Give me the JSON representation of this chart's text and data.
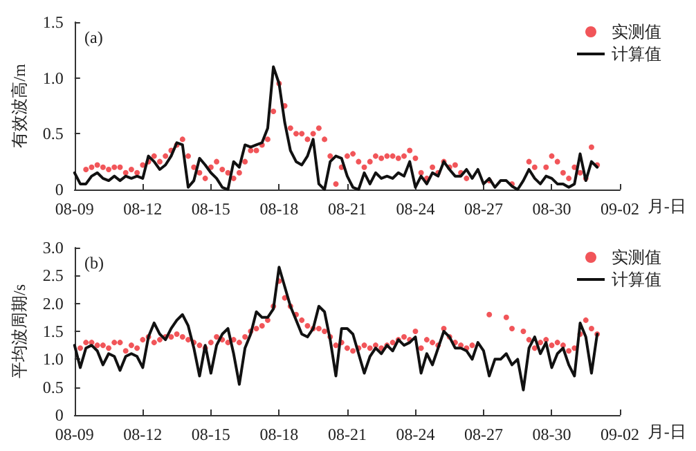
{
  "chart_data": [
    {
      "type": "scatter",
      "title": "(a)",
      "ylabel": "有效波高/m",
      "xlabel": "月-日",
      "legend": "top right",
      "xlim": [
        "--08-09",
        "--09-02"
      ],
      "ylim": [
        0,
        1.5
      ],
      "yticks": [
        {
          "value": 0,
          "label": "0"
        },
        0.5,
        {
          "value": 1,
          "label": "1.0"
        },
        1.5
      ],
      "xticks": [
        {
          "value": "--08-09",
          "label": "08-09"
        },
        {
          "value": "--08-12",
          "label": "08-12"
        },
        {
          "value": "--08-15",
          "label": "08-15"
        },
        {
          "value": "--08-18",
          "label": "08-18"
        },
        {
          "value": "--08-21",
          "label": "08-21"
        },
        {
          "value": "--08-24",
          "label": "08-24"
        },
        {
          "value": "--08-27",
          "label": "08-27"
        },
        {
          "value": "--08-30",
          "label": "08-30"
        },
        {
          "value": "--09-02",
          "label": "09-02"
        }
      ],
      "x": [
        "--08-09T00:00",
        "--08-09T06:00",
        "--08-09T12:00",
        "--08-09T18:00",
        "--08-10T00:00",
        "--08-10T06:00",
        "--08-10T12:00",
        "--08-10T18:00",
        "--08-11T00:00",
        "--08-11T06:00",
        "--08-11T12:00",
        "--08-11T18:00",
        "--08-12T00:00",
        "--08-12T06:00",
        "--08-12T12:00",
        "--08-12T18:00",
        "--08-13T00:00",
        "--08-13T06:00",
        "--08-13T12:00",
        "--08-13T18:00",
        "--08-14T00:00",
        "--08-14T06:00",
        "--08-14T12:00",
        "--08-14T18:00",
        "--08-15T00:00",
        "--08-15T06:00",
        "--08-15T12:00",
        "--08-15T18:00",
        "--08-16T00:00",
        "--08-16T06:00",
        "--08-16T12:00",
        "--08-16T18:00",
        "--08-17T00:00",
        "--08-17T06:00",
        "--08-17T12:00",
        "--08-17T18:00",
        "--08-18T00:00",
        "--08-18T06:00",
        "--08-18T12:00",
        "--08-18T18:00",
        "--08-19T00:00",
        "--08-19T06:00",
        "--08-19T12:00",
        "--08-19T18:00",
        "--08-20T00:00",
        "--08-20T06:00",
        "--08-20T12:00",
        "--08-20T18:00",
        "--08-21T00:00",
        "--08-21T06:00",
        "--08-21T12:00",
        "--08-21T18:00",
        "--08-22T00:00",
        "--08-22T06:00",
        "--08-22T12:00",
        "--08-22T18:00",
        "--08-23T00:00",
        "--08-23T06:00",
        "--08-23T12:00",
        "--08-23T18:00",
        "--08-24T00:00",
        "--08-24T06:00",
        "--08-24T12:00",
        "--08-24T18:00",
        "--08-25T00:00",
        "--08-25T06:00",
        "--08-25T12:00",
        "--08-25T18:00",
        "--08-26T00:00",
        "--08-26T06:00",
        "--08-26T12:00",
        "--08-26T18:00",
        "--08-27T00:00",
        "--08-27T06:00",
        "--08-27T12:00",
        "--08-27T18:00",
        "--08-28T00:00",
        "--08-28T06:00",
        "--08-28T12:00",
        "--08-28T18:00",
        "--08-29T00:00",
        "--08-29T06:00",
        "--08-29T12:00",
        "--08-29T18:00",
        "--08-30T00:00",
        "--08-30T06:00",
        "--08-30T12:00",
        "--08-30T18:00",
        "--08-31T00:00",
        "--08-31T06:00",
        "--08-31T12:00",
        "--08-31T18:00",
        "--09-01T00:00"
      ],
      "series": [
        {
          "name": "实测值",
          "marker": "circle",
          "color": "#ee2b2f",
          "values": [
            null,
            null,
            0.18,
            0.2,
            0.22,
            0.2,
            0.18,
            0.2,
            0.2,
            0.15,
            0.18,
            0.15,
            0.22,
            0.25,
            0.3,
            0.25,
            0.3,
            0.35,
            0.4,
            0.45,
            0.3,
            0.2,
            0.15,
            0.1,
            0.2,
            0.25,
            0.18,
            0.15,
            0.1,
            0.15,
            0.25,
            0.35,
            0.35,
            0.4,
            0.45,
            0.7,
            0.95,
            0.75,
            0.55,
            0.5,
            0.5,
            0.45,
            0.5,
            0.55,
            0.45,
            0.3,
            0.05,
            0.2,
            0.3,
            0.32,
            0.25,
            0.2,
            0.25,
            0.3,
            0.28,
            0.3,
            0.3,
            0.28,
            0.3,
            0.35,
            0.28,
            0.15,
            0.1,
            0.2,
            0.15,
            0.25,
            0.2,
            0.22,
            0.15,
            0.1,
            null,
            null,
            null,
            0.08,
            null,
            null,
            null,
            0.05,
            null,
            null,
            0.25,
            0.2,
            null,
            0.2,
            0.3,
            0.25,
            0.15,
            0.1,
            0.2,
            0.15,
            0.1,
            0.38,
            0.22
          ]
        },
        {
          "name": "计算值",
          "type": "line",
          "marker": "none",
          "line_style": "solid",
          "color": "#111111",
          "values": [
            0.15,
            0.05,
            0.05,
            0.12,
            0.15,
            0.1,
            0.08,
            0.12,
            0.08,
            0.12,
            0.1,
            0.12,
            0.1,
            0.3,
            0.25,
            0.18,
            0.22,
            0.3,
            0.42,
            0.4,
            0.02,
            0.08,
            0.28,
            0.22,
            0.15,
            0.1,
            0.02,
            0.0,
            0.25,
            0.2,
            0.4,
            0.38,
            0.4,
            0.42,
            0.55,
            1.1,
            0.95,
            0.6,
            0.35,
            0.25,
            0.22,
            0.3,
            0.45,
            0.05,
            0.0,
            0.25,
            0.3,
            0.28,
            0.12,
            0.02,
            0.0,
            0.15,
            0.05,
            0.15,
            0.1,
            0.12,
            0.1,
            0.15,
            0.12,
            0.25,
            0.02,
            0.12,
            0.05,
            0.15,
            0.12,
            0.25,
            0.18,
            0.12,
            0.12,
            0.18,
            0.1,
            0.18,
            0.05,
            0.1,
            0.02,
            0.08,
            0.08,
            0.03,
            0.0,
            0.08,
            0.18,
            0.1,
            0.05,
            0.12,
            0.1,
            0.05,
            0.05,
            0.02,
            0.05,
            0.32,
            0.08,
            0.25,
            0.2
          ]
        }
      ]
    },
    {
      "type": "scatter",
      "title": "(b)",
      "ylabel": "平均波周期/s",
      "xlabel": "月-日",
      "legend": "top right",
      "xlim": [
        "--08-09",
        "--09-02"
      ],
      "ylim": [
        0,
        3.0
      ],
      "yticks": [
        {
          "value": 0,
          "label": "0"
        },
        0.5,
        {
          "value": 1,
          "label": "1.0"
        },
        1.5,
        {
          "value": 2,
          "label": "2.0"
        },
        2.5,
        {
          "value": 3,
          "label": "3.0"
        }
      ],
      "xticks": [
        {
          "value": "--08-09",
          "label": "08-09"
        },
        {
          "value": "--08-12",
          "label": "08-12"
        },
        {
          "value": "--08-15",
          "label": "08-15"
        },
        {
          "value": "--08-18",
          "label": "08-18"
        },
        {
          "value": "--08-21",
          "label": "08-21"
        },
        {
          "value": "--08-24",
          "label": "08-24"
        },
        {
          "value": "--08-27",
          "label": "08-27"
        },
        {
          "value": "--08-30",
          "label": "08-30"
        },
        {
          "value": "--09-02",
          "label": "09-02"
        }
      ],
      "x": [
        "--08-09T00:00",
        "--08-09T06:00",
        "--08-09T12:00",
        "--08-09T18:00",
        "--08-10T00:00",
        "--08-10T06:00",
        "--08-10T12:00",
        "--08-10T18:00",
        "--08-11T00:00",
        "--08-11T06:00",
        "--08-11T12:00",
        "--08-11T18:00",
        "--08-12T00:00",
        "--08-12T06:00",
        "--08-12T12:00",
        "--08-12T18:00",
        "--08-13T00:00",
        "--08-13T06:00",
        "--08-13T12:00",
        "--08-13T18:00",
        "--08-14T00:00",
        "--08-14T06:00",
        "--08-14T12:00",
        "--08-14T18:00",
        "--08-15T00:00",
        "--08-15T06:00",
        "--08-15T12:00",
        "--08-15T18:00",
        "--08-16T00:00",
        "--08-16T06:00",
        "--08-16T12:00",
        "--08-16T18:00",
        "--08-17T00:00",
        "--08-17T06:00",
        "--08-17T12:00",
        "--08-17T18:00",
        "--08-18T00:00",
        "--08-18T06:00",
        "--08-18T12:00",
        "--08-18T18:00",
        "--08-19T00:00",
        "--08-19T06:00",
        "--08-19T12:00",
        "--08-19T18:00",
        "--08-20T00:00",
        "--08-20T06:00",
        "--08-20T12:00",
        "--08-20T18:00",
        "--08-21T00:00",
        "--08-21T06:00",
        "--08-21T12:00",
        "--08-21T18:00",
        "--08-22T00:00",
        "--08-22T06:00",
        "--08-22T12:00",
        "--08-22T18:00",
        "--08-23T00:00",
        "--08-23T06:00",
        "--08-23T12:00",
        "--08-23T18:00",
        "--08-24T00:00",
        "--08-24T06:00",
        "--08-24T12:00",
        "--08-24T18:00",
        "--08-25T00:00",
        "--08-25T06:00",
        "--08-25T12:00",
        "--08-25T18:00",
        "--08-26T00:00",
        "--08-26T06:00",
        "--08-26T12:00",
        "--08-26T18:00",
        "--08-27T00:00",
        "--08-27T06:00",
        "--08-27T12:00",
        "--08-27T18:00",
        "--08-28T00:00",
        "--08-28T06:00",
        "--08-28T12:00",
        "--08-28T18:00",
        "--08-29T00:00",
        "--08-29T06:00",
        "--08-29T12:00",
        "--08-29T18:00",
        "--08-30T00:00",
        "--08-30T06:00",
        "--08-30T12:00",
        "--08-30T18:00",
        "--08-31T00:00",
        "--08-31T06:00",
        "--08-31T12:00",
        "--08-31T18:00",
        "--09-01T00:00"
      ],
      "series": [
        {
          "name": "实测值",
          "marker": "circle",
          "color": "#ee2b2f",
          "values": [
            null,
            1.2,
            1.3,
            1.3,
            1.25,
            1.25,
            1.2,
            1.3,
            1.3,
            1.15,
            1.25,
            1.2,
            1.35,
            1.4,
            1.3,
            1.35,
            1.4,
            1.4,
            1.45,
            1.4,
            1.35,
            1.3,
            1.25,
            1.2,
            1.3,
            1.4,
            1.35,
            1.3,
            1.35,
            1.3,
            1.4,
            1.5,
            1.55,
            1.6,
            1.7,
            1.95,
            2.4,
            2.1,
            1.95,
            1.8,
            1.7,
            1.6,
            1.55,
            1.55,
            1.5,
            1.4,
            1.25,
            1.3,
            1.2,
            1.15,
            1.2,
            1.25,
            1.2,
            1.25,
            1.2,
            1.25,
            1.3,
            1.35,
            1.4,
            1.35,
            1.5,
            1.2,
            1.35,
            1.3,
            1.25,
            1.55,
            1.4,
            1.3,
            1.25,
            1.2,
            1.25,
            null,
            null,
            1.8,
            null,
            null,
            1.75,
            1.55,
            null,
            1.5,
            1.35,
            1.2,
            1.3,
            1.35,
            1.25,
            1.3,
            1.25,
            1.15,
            1.2,
            1.45,
            1.7,
            1.55,
            1.45
          ]
        },
        {
          "name": "计算值",
          "type": "line",
          "marker": "none",
          "line_style": "solid",
          "color": "#111111",
          "values": [
            1.25,
            0.85,
            1.2,
            1.25,
            1.15,
            0.9,
            1.1,
            1.05,
            0.8,
            1.05,
            1.1,
            1.05,
            0.85,
            1.4,
            1.65,
            1.45,
            1.35,
            1.55,
            1.7,
            1.8,
            1.6,
            1.2,
            0.7,
            1.25,
            0.75,
            1.25,
            1.45,
            1.55,
            1.1,
            0.55,
            1.2,
            1.45,
            1.85,
            1.75,
            1.75,
            1.9,
            2.65,
            2.3,
            1.95,
            1.7,
            1.45,
            1.4,
            1.55,
            1.95,
            1.85,
            1.35,
            0.7,
            1.55,
            1.55,
            1.45,
            1.1,
            0.75,
            1.05,
            1.2,
            1.1,
            1.25,
            1.15,
            1.35,
            1.25,
            1.3,
            1.4,
            0.75,
            1.1,
            0.9,
            1.2,
            1.5,
            1.4,
            1.2,
            1.2,
            1.15,
            1.0,
            1.3,
            1.15,
            0.7,
            1.0,
            1.0,
            1.1,
            0.9,
            1.0,
            0.45,
            1.2,
            1.4,
            1.1,
            1.3,
            0.85,
            1.1,
            1.2,
            0.9,
            0.7,
            1.65,
            1.4,
            0.75,
            1.45
          ]
        }
      ]
    }
  ]
}
